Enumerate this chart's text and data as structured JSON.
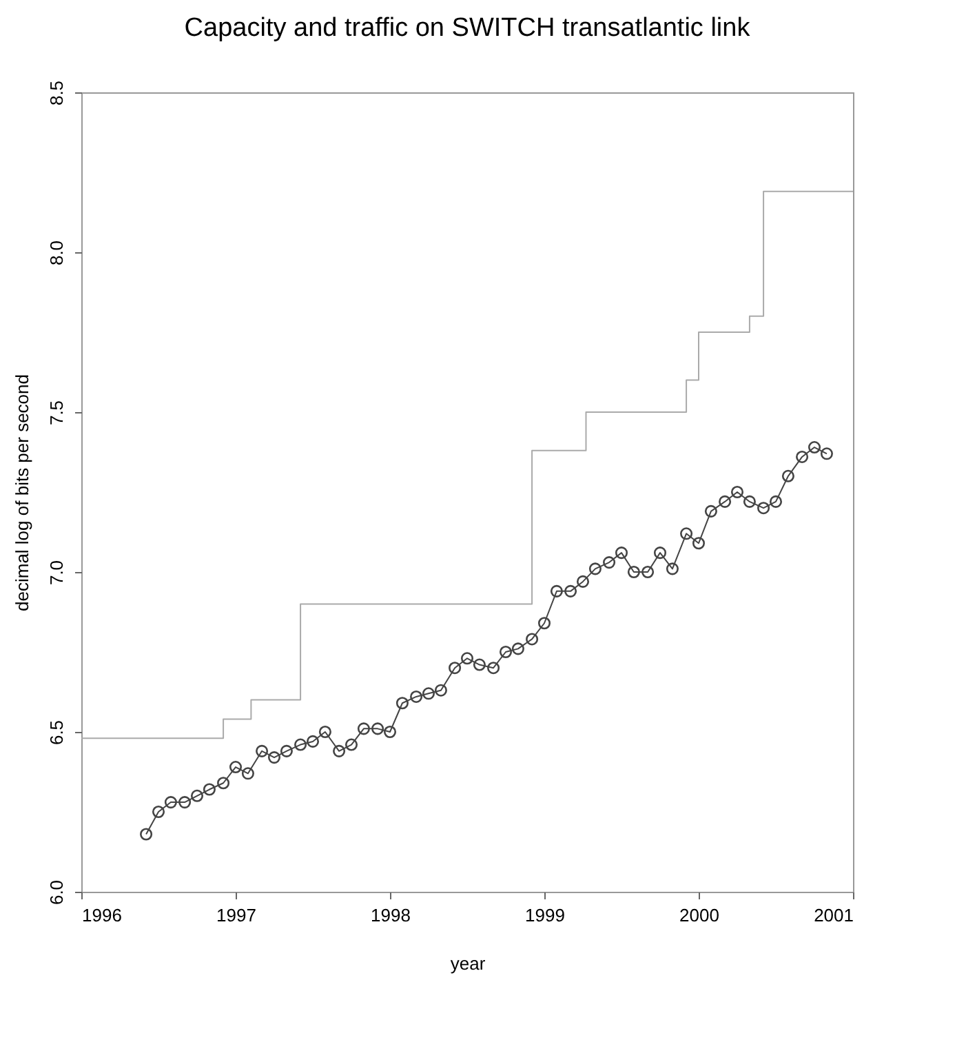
{
  "chart_data": {
    "type": "line",
    "title": "Capacity and traffic on SWITCH transatlantic link",
    "xlabel": "year",
    "ylabel": "decimal log of bits per second",
    "xlim": [
      1996,
      2001
    ],
    "ylim": [
      6.0,
      8.5
    ],
    "xticks": [
      1996,
      1997,
      1998,
      1999,
      2000,
      2001
    ],
    "yticks": [
      {
        "value": 6.0,
        "label": "6.0"
      },
      {
        "value": 6.5,
        "label": "6.5"
      },
      {
        "value": 7.0,
        "label": "7.0"
      },
      {
        "value": 7.5,
        "label": "7.5"
      },
      {
        "value": 8.0,
        "label": "8.0"
      },
      {
        "value": 8.5,
        "label": "8.5"
      }
    ],
    "grid": false,
    "series": [
      {
        "type": "step",
        "color": "#aaaaaa",
        "marker": "none",
        "x": [
          1996,
          1996.92,
          1997.1,
          1997.42,
          1998.92,
          1999.27,
          1999.92,
          2000.0,
          2000.33,
          2000.42,
          2001
        ],
        "values": [
          6.48,
          6.54,
          6.6,
          6.9,
          7.38,
          7.5,
          7.6,
          7.75,
          7.8,
          8.19,
          8.19
        ]
      },
      {
        "color": "#444444",
        "marker": "circle",
        "x": [
          1996.42,
          1996.5,
          1996.58,
          1996.67,
          1996.75,
          1996.83,
          1996.92,
          1997.0,
          1997.08,
          1997.17,
          1997.25,
          1997.33,
          1997.42,
          1997.5,
          1997.58,
          1997.67,
          1997.75,
          1997.83,
          1997.92,
          1998.0,
          1998.08,
          1998.17,
          1998.25,
          1998.33,
          1998.42,
          1998.5,
          1998.58,
          1998.67,
          1998.75,
          1998.83,
          1998.92,
          1999.0,
          1999.08,
          1999.17,
          1999.25,
          1999.33,
          1999.42,
          1999.5,
          1999.58,
          1999.67,
          1999.75,
          1999.83,
          1999.92,
          2000.0,
          2000.08,
          2000.17,
          2000.25,
          2000.33,
          2000.42,
          2000.5,
          2000.58,
          2000.67,
          2000.75,
          2000.83
        ],
        "values": [
          6.18,
          6.25,
          6.28,
          6.28,
          6.3,
          6.32,
          6.34,
          6.39,
          6.37,
          6.44,
          6.42,
          6.44,
          6.46,
          6.47,
          6.5,
          6.44,
          6.46,
          6.51,
          6.51,
          6.5,
          6.59,
          6.61,
          6.62,
          6.63,
          6.7,
          6.73,
          6.71,
          6.7,
          6.75,
          6.76,
          6.79,
          6.84,
          6.94,
          6.94,
          6.97,
          7.01,
          7.03,
          7.06,
          7.0,
          7.0,
          7.06,
          7.01,
          7.12,
          7.09,
          7.19,
          7.22,
          7.25,
          7.22,
          7.2,
          7.22,
          7.3,
          7.36,
          7.39,
          7.37
        ]
      }
    ]
  }
}
